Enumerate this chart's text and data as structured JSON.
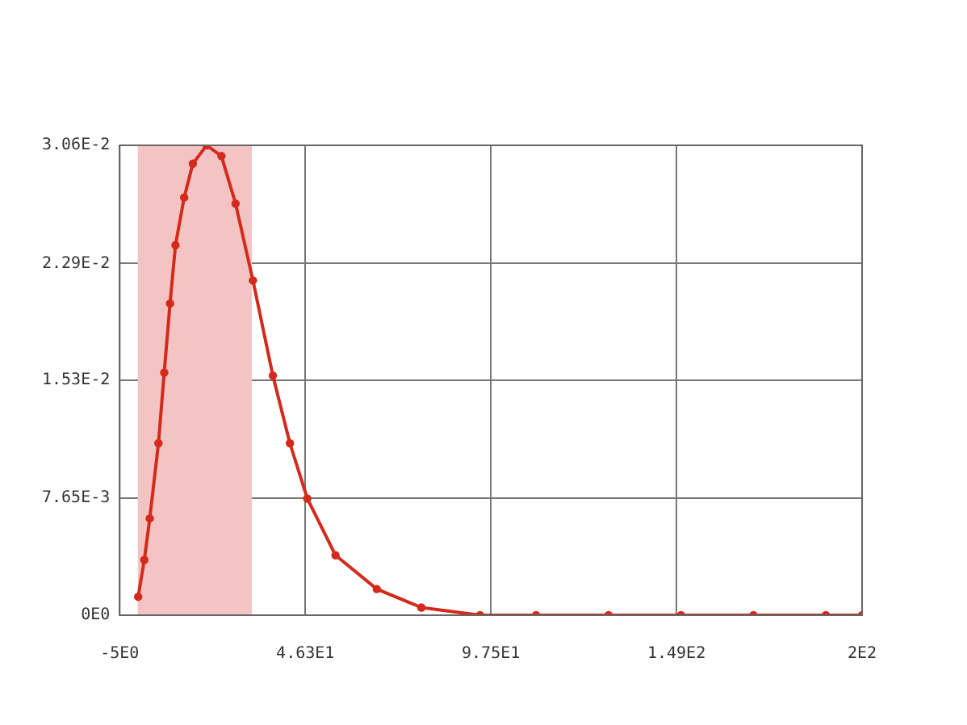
{
  "chart_data": {
    "type": "line",
    "marker": "circle",
    "line_style": "solid",
    "grid": true,
    "legend": false,
    "x": [
      0.1,
      1.8,
      3.3,
      5.7,
      7.3,
      8.9,
      10.4,
      12.8,
      15.2,
      19,
      23.1,
      27,
      31.8,
      37.3,
      42,
      46.8,
      54.6,
      66,
      78.3,
      94.5,
      110,
      130,
      150,
      170,
      190,
      200
    ],
    "series": [
      {
        "color": "#d42a1c",
        "values": [
          0.0012,
          0.0036,
          0.0063,
          0.0112,
          0.0158,
          0.0203,
          0.0241,
          0.0272,
          0.0294,
          0.0306,
          0.0299,
          0.0268,
          0.0218,
          0.0156,
          0.0112,
          0.0076,
          0.0039,
          0.0017,
          0.0005,
          0,
          0,
          0,
          0,
          0,
          0,
          0
        ]
      }
    ],
    "bands": [
      {
        "axis": "x",
        "from": 0,
        "to": 31.5,
        "color": "#f4c4c4"
      }
    ],
    "xlim": [
      -5,
      200
    ],
    "xticks": [
      {
        "value": -5,
        "label": "-5E0"
      },
      {
        "value": 46.25,
        "label": "4.63E1"
      },
      {
        "value": 97.5,
        "label": "9.75E1"
      },
      {
        "value": 148.75,
        "label": "1.49E2"
      },
      {
        "value": 200,
        "label": "2E2"
      }
    ],
    "ylim": [
      0,
      0.0306
    ],
    "yticks": [
      {
        "value": 0,
        "label": "0E0"
      },
      {
        "value": 0.00765,
        "label": "7.65E-3"
      },
      {
        "value": 0.0153,
        "label": "1.53E-2"
      },
      {
        "value": 0.0229,
        "label": "2.29E-2"
      },
      {
        "value": 0.0306,
        "label": "3.06E-2"
      }
    ]
  }
}
